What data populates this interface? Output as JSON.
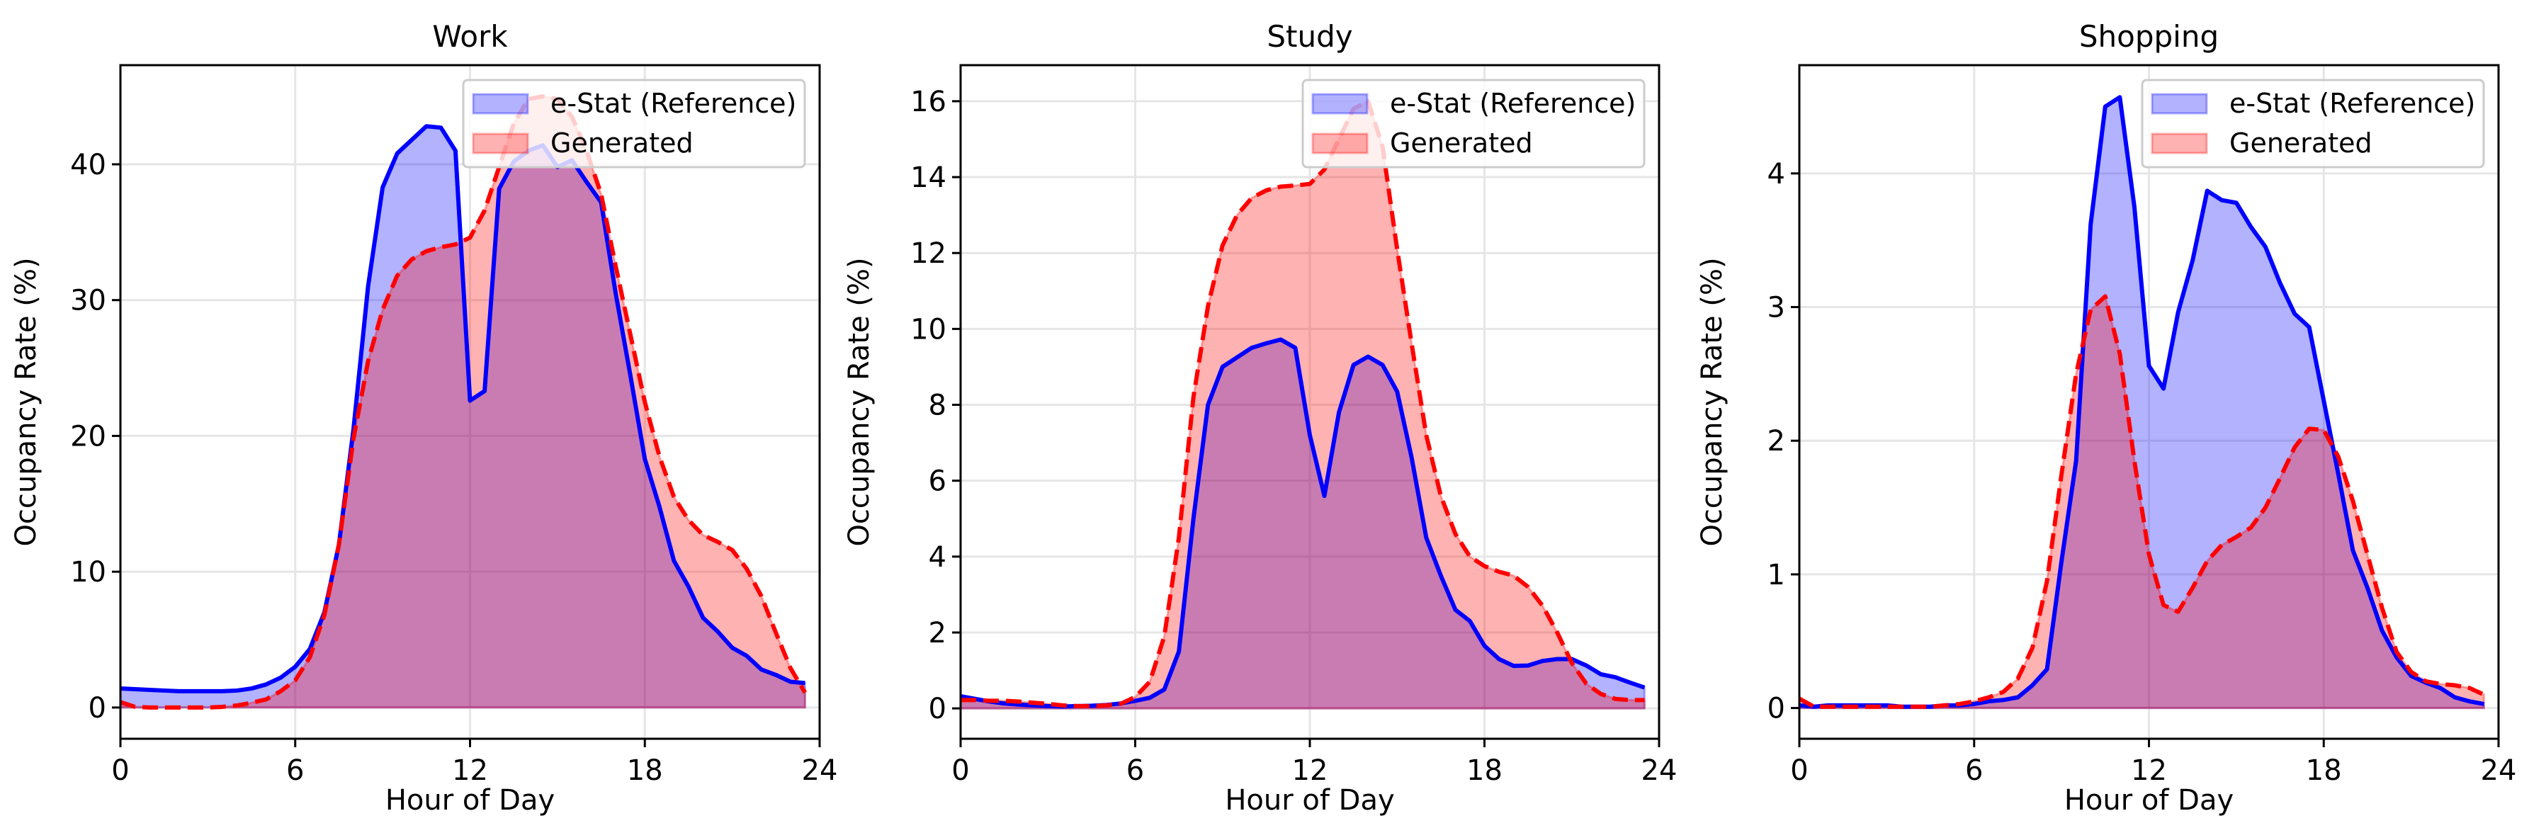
{
  "chart_data": [
    {
      "type": "area",
      "title": "Work",
      "xlabel": "Hour of Day",
      "ylabel": "Occupancy Rate (%)",
      "xlim": [
        0,
        24
      ],
      "ylim": [
        -2.3,
        47.3
      ],
      "xticks": [
        0,
        6,
        12,
        18,
        24
      ],
      "yticks": [
        0,
        10,
        20,
        30,
        40
      ],
      "grid": true,
      "legend_position": "top-right",
      "x": [
        0,
        0.5,
        1,
        1.5,
        2,
        2.5,
        3,
        3.5,
        4,
        4.5,
        5,
        5.5,
        6,
        6.5,
        7,
        7.5,
        8,
        8.5,
        9,
        9.5,
        10,
        10.5,
        11,
        11.5,
        12,
        12.5,
        13,
        13.5,
        14,
        14.5,
        15,
        15.5,
        16,
        16.5,
        17,
        17.5,
        18,
        18.5,
        19,
        19.5,
        20,
        20.5,
        21,
        21.5,
        22,
        22.5,
        23,
        23.5
      ],
      "series": [
        {
          "name": "e-Stat (Reference)",
          "color": "#0000ff",
          "style": "solid",
          "values": [
            1.4,
            1.35,
            1.3,
            1.25,
            1.2,
            1.2,
            1.2,
            1.2,
            1.25,
            1.4,
            1.7,
            2.2,
            3.0,
            4.3,
            7.0,
            12,
            20.5,
            31,
            38.3,
            40.8,
            41.8,
            42.8,
            42.7,
            41,
            22.6,
            23.3,
            38.2,
            40.2,
            41.0,
            41.4,
            39.8,
            40.3,
            38.7,
            37.2,
            30.5,
            24.5,
            18.3,
            14.8,
            10.8,
            8.9,
            6.6,
            5.6,
            4.4,
            3.8,
            2.8,
            2.4,
            1.9,
            1.8
          ]
        },
        {
          "name": "Generated",
          "color": "#ff0000",
          "style": "dashed",
          "values": [
            0.4,
            0.05,
            0,
            0,
            0,
            0,
            0,
            0.05,
            0.15,
            0.35,
            0.6,
            1.2,
            2.0,
            3.7,
            6.8,
            12,
            19.8,
            25.5,
            29.3,
            31.8,
            33.0,
            33.6,
            33.9,
            34.1,
            34.6,
            36.6,
            39.8,
            43.0,
            44.8,
            45.0,
            44.8,
            43.5,
            41.0,
            37.8,
            32.5,
            27.5,
            22.5,
            18.5,
            15.5,
            13.8,
            12.7,
            12.2,
            11.6,
            10.2,
            8.2,
            5.5,
            2.9,
            1.1
          ]
        }
      ]
    },
    {
      "type": "area",
      "title": "Study",
      "xlabel": "Hour of Day",
      "ylabel": "Occupancy Rate (%)",
      "xlim": [
        0,
        24
      ],
      "ylim": [
        -0.8,
        16.95
      ],
      "xticks": [
        0,
        6,
        12,
        18,
        24
      ],
      "yticks": [
        0,
        2,
        4,
        6,
        8,
        10,
        12,
        14,
        16
      ],
      "grid": true,
      "legend_position": "top-right",
      "x": [
        0,
        0.5,
        1,
        1.5,
        2,
        2.5,
        3,
        3.5,
        4,
        4.5,
        5,
        5.5,
        6,
        6.5,
        7,
        7.5,
        8,
        8.5,
        9,
        9.5,
        10,
        10.5,
        11,
        11.5,
        12,
        12.5,
        13,
        13.5,
        14,
        14.5,
        15,
        15.5,
        16,
        16.5,
        17,
        17.5,
        18,
        18.5,
        19,
        19.5,
        20,
        20.5,
        21,
        21.5,
        22,
        22.5,
        23,
        23.5
      ],
      "series": [
        {
          "name": "e-Stat (Reference)",
          "color": "#0000ff",
          "style": "solid",
          "values": [
            0.32,
            0.25,
            0.18,
            0.13,
            0.1,
            0.08,
            0.06,
            0.05,
            0.06,
            0.07,
            0.09,
            0.13,
            0.2,
            0.28,
            0.5,
            1.5,
            5,
            8.0,
            9.0,
            9.25,
            9.5,
            9.62,
            9.72,
            9.5,
            7.2,
            5.6,
            7.8,
            9.05,
            9.27,
            9.05,
            8.35,
            6.6,
            4.5,
            3.5,
            2.6,
            2.3,
            1.65,
            1.3,
            1.12,
            1.13,
            1.25,
            1.3,
            1.3,
            1.13,
            0.9,
            0.82,
            0.68,
            0.55
          ]
        },
        {
          "name": "Generated",
          "color": "#ff0000",
          "style": "dashed",
          "values": [
            0.22,
            0.22,
            0.2,
            0.2,
            0.18,
            0.15,
            0.12,
            0.08,
            0.06,
            0.06,
            0.08,
            0.12,
            0.3,
            0.7,
            1.9,
            4.5,
            8.2,
            10.6,
            12.2,
            13.0,
            13.45,
            13.65,
            13.75,
            13.78,
            13.82,
            14.2,
            15.0,
            15.8,
            16.0,
            14.8,
            12.1,
            9.6,
            7.2,
            5.6,
            4.6,
            4.0,
            3.75,
            3.6,
            3.5,
            3.2,
            2.7,
            2.0,
            1.2,
            0.65,
            0.38,
            0.25,
            0.22,
            0.22
          ]
        }
      ]
    },
    {
      "type": "area",
      "title": "Shopping",
      "xlabel": "Hour of Day",
      "ylabel": "Occupancy Rate (%)",
      "xlim": [
        0,
        24
      ],
      "ylim": [
        -0.23,
        4.81
      ],
      "xticks": [
        0,
        6,
        12,
        18,
        24
      ],
      "yticks": [
        0,
        1,
        2,
        3,
        4
      ],
      "grid": true,
      "legend_position": "top-right",
      "x": [
        0,
        0.5,
        1,
        1.5,
        2,
        2.5,
        3,
        3.5,
        4,
        4.5,
        5,
        5.5,
        6,
        6.5,
        7,
        7.5,
        8,
        8.5,
        9,
        9.5,
        10,
        10.5,
        11,
        11.5,
        12,
        12.5,
        13,
        13.5,
        14,
        14.5,
        15,
        15.5,
        16,
        16.5,
        17,
        17.5,
        18,
        18.5,
        19,
        19.5,
        20,
        20.5,
        21,
        21.5,
        22,
        22.5,
        23,
        23.5
      ],
      "series": [
        {
          "name": "e-Stat (Reference)",
          "color": "#0000ff",
          "style": "solid",
          "values": [
            0.02,
            0.01,
            0.02,
            0.02,
            0.02,
            0.02,
            0.02,
            0.01,
            0.01,
            0.01,
            0.02,
            0.02,
            0.03,
            0.05,
            0.06,
            0.08,
            0.17,
            0.29,
            1.1,
            1.85,
            3.62,
            4.5,
            4.57,
            3.75,
            2.56,
            2.39,
            2.96,
            3.35,
            3.87,
            3.8,
            3.78,
            3.6,
            3.45,
            3.18,
            2.95,
            2.85,
            2.3,
            1.75,
            1.18,
            0.9,
            0.58,
            0.38,
            0.24,
            0.19,
            0.15,
            0.08,
            0.05,
            0.03
          ]
        },
        {
          "name": "Generated",
          "color": "#ff0000",
          "style": "dashed",
          "values": [
            0.07,
            0.01,
            0.01,
            0.01,
            0.01,
            0.01,
            0.01,
            0.01,
            0.01,
            0.01,
            0.02,
            0.03,
            0.05,
            0.08,
            0.12,
            0.22,
            0.45,
            0.95,
            1.75,
            2.5,
            2.98,
            3.08,
            2.65,
            1.85,
            1.15,
            0.77,
            0.72,
            0.9,
            1.1,
            1.22,
            1.28,
            1.35,
            1.5,
            1.72,
            1.95,
            2.09,
            2.08,
            1.88,
            1.55,
            1.15,
            0.75,
            0.42,
            0.27,
            0.2,
            0.18,
            0.17,
            0.15,
            0.1
          ]
        }
      ]
    }
  ]
}
